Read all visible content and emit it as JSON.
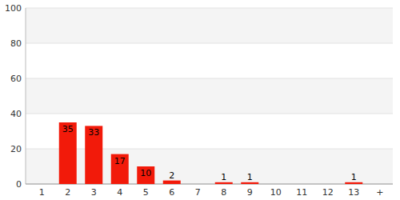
{
  "chart_data": {
    "type": "bar",
    "categories": [
      "1",
      "2",
      "3",
      "4",
      "5",
      "6",
      "7",
      "8",
      "9",
      "10",
      "11",
      "12",
      "13",
      "+"
    ],
    "values": [
      0,
      35,
      33,
      17,
      10,
      2,
      0,
      1,
      1,
      0,
      0,
      0,
      1,
      0
    ],
    "color": "#f21a0a",
    "ylim": [
      0,
      100
    ],
    "yticks": [
      0,
      20,
      40,
      60,
      80,
      100
    ],
    "grid": true,
    "data_labels": true
  }
}
